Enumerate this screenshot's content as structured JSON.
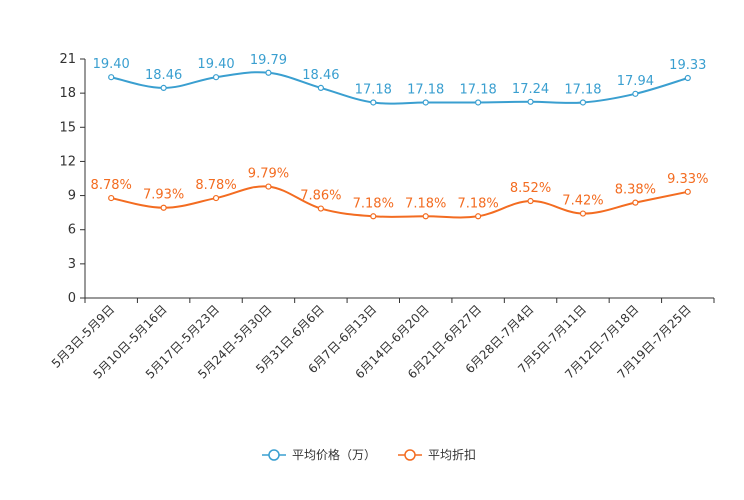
{
  "chart_data": {
    "type": "line",
    "title": "",
    "xlabel": "",
    "ylabel": "",
    "ylim": [
      0,
      21
    ],
    "yticks": [
      0,
      3,
      6,
      9,
      12,
      15,
      18,
      21
    ],
    "grid": false,
    "legend_position": "bottom-center",
    "categories": [
      "5月3日-5月9日",
      "5月10日-5月16日",
      "5月17日-5月23日",
      "5月24日-5月30日",
      "5月31日-6月6日",
      "6月7日-6月13日",
      "6月14日-6月20日",
      "6月21日-6月27日",
      "6月28日-7月4日",
      "7月5日-7月11日",
      "7月12日-7月18日",
      "7月19日-7月25日"
    ],
    "series": [
      {
        "name": "平均价格（万）",
        "color": "#3a9fd0",
        "values": [
          19.4,
          18.46,
          19.4,
          19.79,
          18.46,
          17.18,
          17.18,
          17.18,
          17.24,
          17.18,
          17.94,
          19.33
        ],
        "labels": [
          "19.40",
          "18.46",
          "19.40",
          "19.79",
          "18.46",
          "17.18",
          "17.18",
          "17.18",
          "17.24",
          "17.18",
          "17.94",
          "19.33"
        ]
      },
      {
        "name": "平均折扣",
        "color": "#f36c21",
        "values": [
          8.78,
          7.93,
          8.78,
          9.79,
          7.86,
          7.18,
          7.18,
          7.18,
          8.52,
          7.42,
          8.38,
          9.33
        ],
        "labels": [
          "8.78%",
          "7.93%",
          "8.78%",
          "9.79%",
          "7.86%",
          "7.18%",
          "7.18%",
          "7.18%",
          "8.52%",
          "7.42%",
          "8.38%",
          "9.33%"
        ]
      }
    ]
  }
}
